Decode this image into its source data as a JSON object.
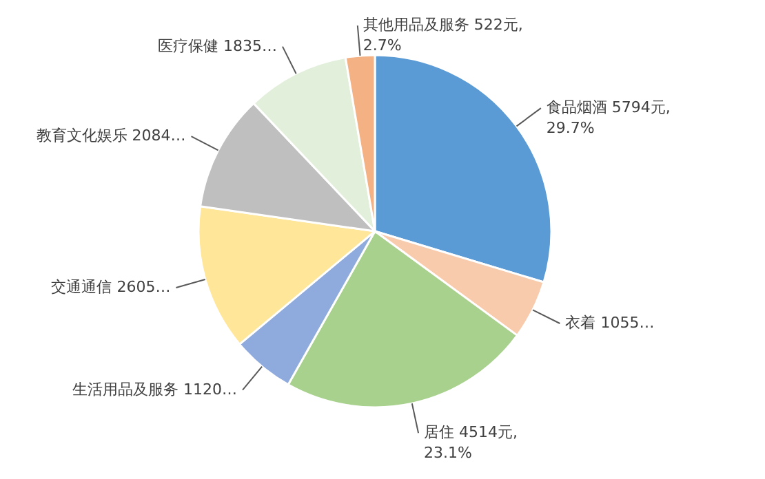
{
  "chart_data": {
    "type": "pie",
    "categories": [
      "食品烟酒",
      "衣着",
      "居住",
      "生活用品及服务",
      "交通通信",
      "教育文化娱乐",
      "医疗保健",
      "其他用品及服务"
    ],
    "values": [
      5794,
      1055,
      4514,
      1120,
      2605,
      2084,
      1835,
      522
    ],
    "value_labels": [
      "5794元, 29.7%",
      "1055…",
      "4514元, 23.1%",
      "1120…",
      "2605…",
      "2084…",
      "1835…",
      "522元, 2.7%"
    ],
    "colors": [
      "#5b9bd5",
      "#f8cbad",
      "#a9d18e",
      "#8faadc",
      "#ffe699",
      "#bfbfbf",
      "#e2efda",
      "#f4b183"
    ]
  }
}
